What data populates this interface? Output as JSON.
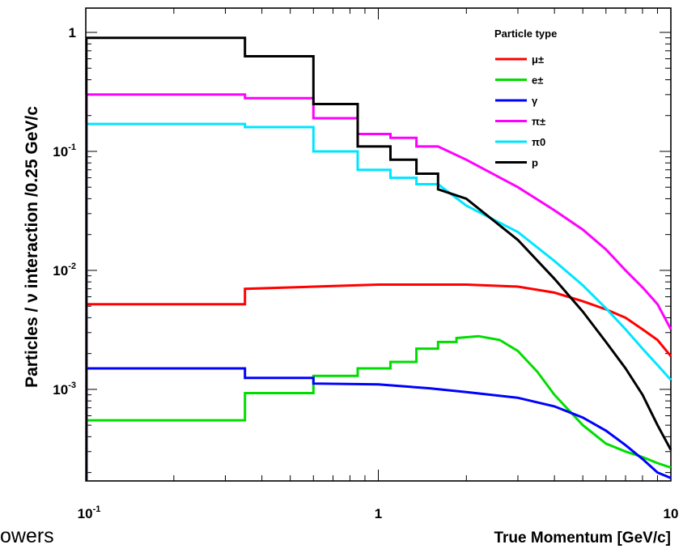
{
  "slide_fragment": "owers",
  "chart_data": {
    "type": "line",
    "step": true,
    "xscale": "log",
    "yscale": "log",
    "xlim": [
      0.1,
      10
    ],
    "ylim": [
      0.00017,
      1.6
    ],
    "xlabel": "True Momentum [GeV/c]",
    "ylabel": "Particles / ν interaction /0.25 GeV/c",
    "x_ticks": [
      {
        "value": 0.1,
        "base": "10",
        "exp": "-1"
      },
      {
        "value": 1,
        "base": "1",
        "exp": ""
      },
      {
        "value": 10,
        "base": "10",
        "exp": ""
      }
    ],
    "y_ticks": [
      {
        "value": 1,
        "base": "1",
        "exp": ""
      },
      {
        "value": 0.1,
        "base": "10",
        "exp": "-1"
      },
      {
        "value": 0.01,
        "base": "10",
        "exp": "-2"
      },
      {
        "value": 0.001,
        "base": "10",
        "exp": "-3"
      }
    ],
    "legend_title": "Particle type",
    "legend_position": "top-right",
    "series": [
      {
        "name": "μ±",
        "color": "#ff0000",
        "points": [
          [
            0.1,
            0.0052
          ],
          [
            0.35,
            0.0052
          ],
          [
            0.35,
            0.007
          ],
          [
            1.0,
            0.0076
          ],
          [
            2.0,
            0.0076
          ],
          [
            3.0,
            0.0073
          ],
          [
            4.0,
            0.0065
          ],
          [
            5.0,
            0.0055
          ],
          [
            6.0,
            0.0047
          ],
          [
            7.0,
            0.004
          ],
          [
            8.0,
            0.0032
          ],
          [
            9.0,
            0.0026
          ],
          [
            10.0,
            0.0019
          ]
        ]
      },
      {
        "name": "e±",
        "color": "#00dd00",
        "points": [
          [
            0.1,
            0.00055
          ],
          [
            0.35,
            0.00055
          ],
          [
            0.35,
            0.00093
          ],
          [
            0.6,
            0.00093
          ],
          [
            0.6,
            0.0013
          ],
          [
            0.85,
            0.0013
          ],
          [
            0.85,
            0.0015
          ],
          [
            1.1,
            0.0015
          ],
          [
            1.1,
            0.0017
          ],
          [
            1.35,
            0.0017
          ],
          [
            1.35,
            0.0022
          ],
          [
            1.6,
            0.0022
          ],
          [
            1.6,
            0.0025
          ],
          [
            1.85,
            0.0025
          ],
          [
            1.85,
            0.0027
          ],
          [
            2.2,
            0.0028
          ],
          [
            2.6,
            0.0026
          ],
          [
            3.0,
            0.0021
          ],
          [
            3.5,
            0.0014
          ],
          [
            4.0,
            0.0009
          ],
          [
            5.0,
            0.0005
          ],
          [
            6.0,
            0.00035
          ],
          [
            7.0,
            0.0003
          ],
          [
            8.0,
            0.00027
          ],
          [
            9.0,
            0.00024
          ],
          [
            10.0,
            0.00022
          ]
        ]
      },
      {
        "name": "γ",
        "color": "#0000ff",
        "points": [
          [
            0.1,
            0.0015
          ],
          [
            0.35,
            0.0015
          ],
          [
            0.35,
            0.00125
          ],
          [
            0.6,
            0.00125
          ],
          [
            0.6,
            0.00112
          ],
          [
            1.0,
            0.0011
          ],
          [
            1.5,
            0.00102
          ],
          [
            2.0,
            0.00095
          ],
          [
            3.0,
            0.00085
          ],
          [
            4.0,
            0.00072
          ],
          [
            5.0,
            0.00058
          ],
          [
            6.0,
            0.00045
          ],
          [
            7.0,
            0.00034
          ],
          [
            8.0,
            0.00026
          ],
          [
            9.0,
            0.0002
          ],
          [
            10.0,
            0.00018
          ]
        ]
      },
      {
        "name": "π±",
        "color": "#ff00ff",
        "points": [
          [
            0.1,
            0.3
          ],
          [
            0.35,
            0.3
          ],
          [
            0.35,
            0.28
          ],
          [
            0.6,
            0.28
          ],
          [
            0.6,
            0.19
          ],
          [
            0.85,
            0.19
          ],
          [
            0.85,
            0.14
          ],
          [
            1.1,
            0.14
          ],
          [
            1.1,
            0.13
          ],
          [
            1.35,
            0.13
          ],
          [
            1.35,
            0.11
          ],
          [
            1.6,
            0.11
          ],
          [
            2.0,
            0.085
          ],
          [
            3.0,
            0.05
          ],
          [
            4.0,
            0.032
          ],
          [
            5.0,
            0.022
          ],
          [
            6.0,
            0.015
          ],
          [
            7.0,
            0.01
          ],
          [
            8.0,
            0.0072
          ],
          [
            9.0,
            0.0052
          ],
          [
            10.0,
            0.0032
          ]
        ]
      },
      {
        "name": "π0",
        "color": "#00e5ff",
        "points": [
          [
            0.1,
            0.17
          ],
          [
            0.35,
            0.17
          ],
          [
            0.35,
            0.16
          ],
          [
            0.6,
            0.16
          ],
          [
            0.6,
            0.1
          ],
          [
            0.85,
            0.1
          ],
          [
            0.85,
            0.07
          ],
          [
            1.1,
            0.07
          ],
          [
            1.1,
            0.06
          ],
          [
            1.35,
            0.06
          ],
          [
            1.35,
            0.053
          ],
          [
            1.6,
            0.053
          ],
          [
            2.0,
            0.035
          ],
          [
            3.0,
            0.021
          ],
          [
            4.0,
            0.012
          ],
          [
            5.0,
            0.0075
          ],
          [
            6.0,
            0.0048
          ],
          [
            7.0,
            0.0032
          ],
          [
            8.0,
            0.0022
          ],
          [
            9.0,
            0.0016
          ],
          [
            10.0,
            0.0012
          ]
        ]
      },
      {
        "name": "p",
        "color": "#000000",
        "points": [
          [
            0.1,
            0.9
          ],
          [
            0.35,
            0.9
          ],
          [
            0.35,
            0.63
          ],
          [
            0.6,
            0.63
          ],
          [
            0.6,
            0.25
          ],
          [
            0.85,
            0.25
          ],
          [
            0.85,
            0.25
          ],
          [
            0.85,
            0.11
          ],
          [
            1.1,
            0.11
          ],
          [
            1.1,
            0.085
          ],
          [
            1.35,
            0.085
          ],
          [
            1.35,
            0.065
          ],
          [
            1.6,
            0.065
          ],
          [
            1.6,
            0.048
          ],
          [
            2.0,
            0.04
          ],
          [
            3.0,
            0.018
          ],
          [
            4.0,
            0.0085
          ],
          [
            5.0,
            0.0045
          ],
          [
            6.0,
            0.0025
          ],
          [
            7.0,
            0.0015
          ],
          [
            8.0,
            0.0009
          ],
          [
            9.0,
            0.0005
          ],
          [
            10.0,
            0.00031
          ]
        ]
      }
    ]
  }
}
